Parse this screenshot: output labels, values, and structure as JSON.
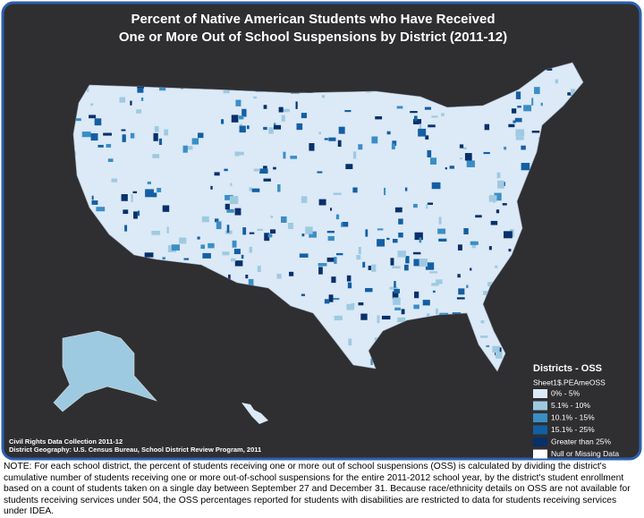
{
  "title_lines": [
    "Percent of Native American Students who Have Received",
    "One or More Out of School Suspensions by District (2011-12)"
  ],
  "legend": {
    "title": "Districts - OSS",
    "field": "Sheet1$.PEAmeOSS",
    "items": [
      {
        "label": "0% - 5%",
        "color": "#dce9f6"
      },
      {
        "label": "5.1% - 10%",
        "color": "#9ecae1"
      },
      {
        "label": "10.1% - 15%",
        "color": "#3a8ec6"
      },
      {
        "label": "15.1% - 25%",
        "color": "#135fa3"
      },
      {
        "label": "Greater than 25%",
        "color": "#08306b"
      },
      {
        "label": "Null or Missing Data",
        "color": "#ffffff"
      }
    ]
  },
  "source_lines": [
    "Civil Rights Data Collection 2011-12",
    "District Geography: U.S. Census Bureau, School District Review Program, 2011"
  ],
  "note": "NOTE:  For each school district, the percent of students receiving one or more out of school suspensions (OSS) is calculated by dividing the district's cumulative number of students receiving one or more out-of-school suspensions for the entire 2011-2012 school year, by the district's student enrollment based on a count of students taken on a single day between September 27 and December 31. Because race/ethnicity details on OSS are not available for students receiving services under 504, the OSS percentages reported for students with disabilities are restricted to data for students receiving services under IDEA."
}
